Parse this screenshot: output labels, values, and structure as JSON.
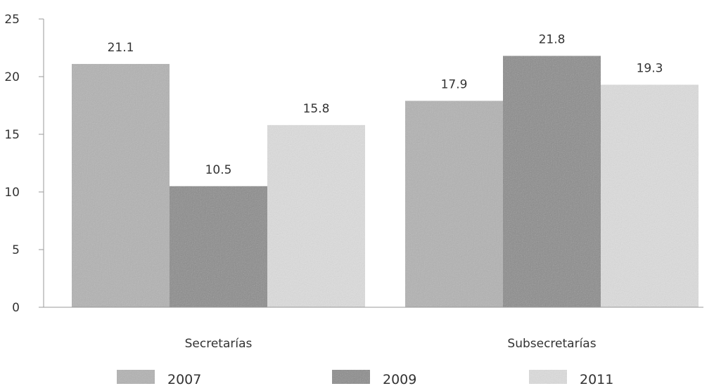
{
  "chart_data": {
    "type": "bar",
    "title": "",
    "xlabel": "",
    "ylabel": "",
    "categories": [
      "Secretarías",
      "Subsecretarías"
    ],
    "series": [
      {
        "name": "2007",
        "values": [
          21.1,
          17.9
        ],
        "color": "#b2b2b2"
      },
      {
        "name": "2009",
        "values": [
          10.5,
          21.8
        ],
        "color": "#8a8a8a"
      },
      {
        "name": "2011",
        "values": [
          15.8,
          19.3
        ],
        "color": "#dedede"
      }
    ],
    "ylim": [
      0,
      25
    ],
    "yticks": [
      "0",
      "5",
      "10",
      "15",
      "20",
      "25"
    ],
    "legend_position": "bottom",
    "grid": false
  }
}
